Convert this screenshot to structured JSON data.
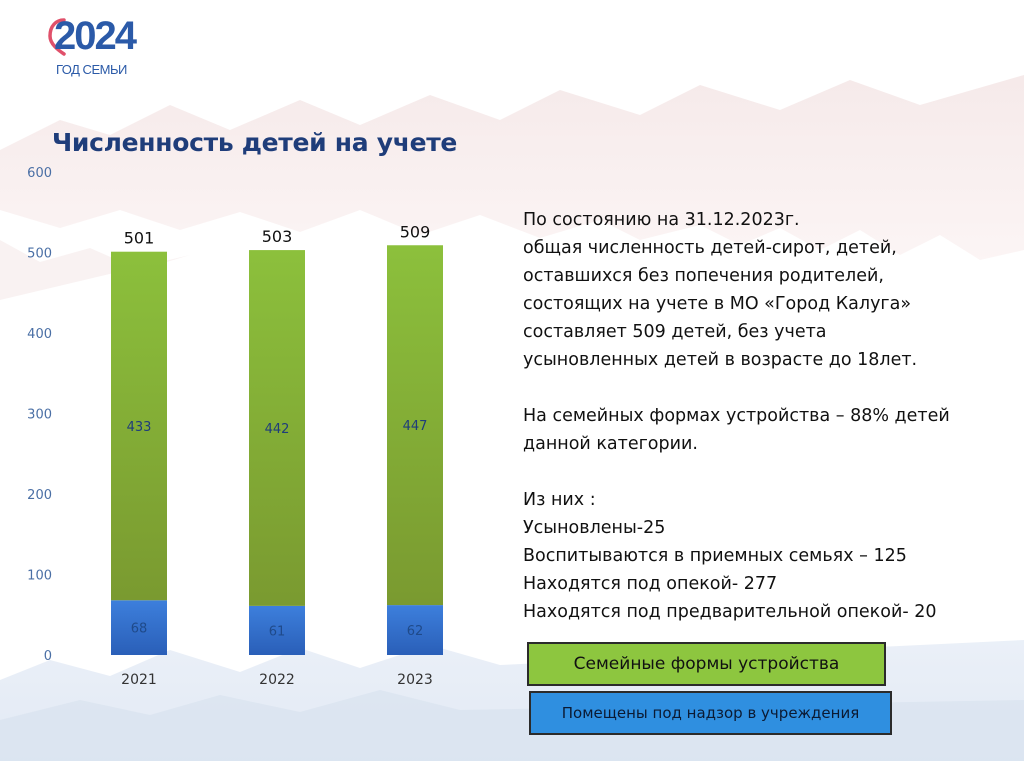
{
  "logo": {
    "year": "2024",
    "subtitle": "ГОД СЕМЬИ"
  },
  "title": "Численность детей на учете",
  "chart_data": {
    "type": "bar",
    "stacked": true,
    "categories": [
      "2021",
      "2022",
      "2023"
    ],
    "series": [
      {
        "name": "Помещены под надзор в учреждения",
        "values": [
          68,
          61,
          62
        ],
        "color": "#2f6fd0"
      },
      {
        "name": "Семейные формы устройства",
        "values": [
          433,
          442,
          447
        ],
        "color": "#8ab33c"
      }
    ],
    "totals": [
      501,
      503,
      509
    ],
    "ylim": [
      0,
      600
    ],
    "yticks": [
      0,
      100,
      200,
      300,
      400,
      500,
      600
    ],
    "legend": "bottom-right",
    "grid": false
  },
  "info": {
    "lines": [
      "По состоянию на 31.12.2023г.",
      "общая численность детей-сирот, детей,",
      "оставшихся без попечения родителей,",
      "состоящих на учете в МО «Город Калуга»",
      "составляет 509 детей, без учета",
      "усыновленных детей в возрасте до 18лет."
    ],
    "family_lines": [
      "На семейных формах устройства – 88% детей",
      "данной категории."
    ],
    "breakdown": [
      "Из них :",
      "Усыновлены-25",
      "Воспитываются в приемных семьях – 125",
      "Находятся под опекой- 277",
      "Находятся под предварительной опекой- 20"
    ]
  },
  "legend": {
    "green_label": "Семейные формы устройства",
    "blue_label": "Помещены под надзор в учреждения"
  }
}
